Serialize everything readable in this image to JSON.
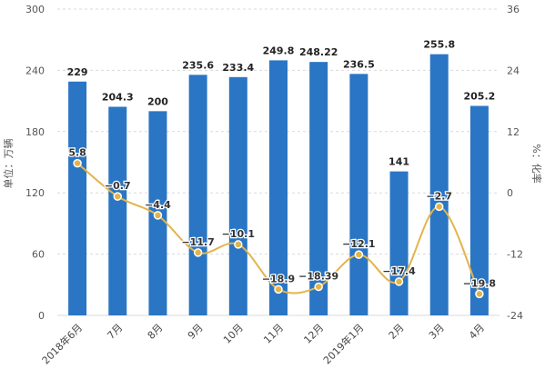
{
  "chart_data": {
    "type": "bar",
    "categories": [
      "2018年6月",
      "7月",
      "8月",
      "9月",
      "10月",
      "11月",
      "12月",
      "2019年1月",
      "2月",
      "3月",
      "4月"
    ],
    "series": [
      {
        "type": "bar",
        "axis": "left",
        "values": [
          229,
          204.3,
          200,
          235.6,
          233.4,
          249.8,
          248.22,
          236.5,
          141,
          255.8,
          205.2
        ],
        "value_labels": [
          "229",
          "204.3",
          "200",
          "235.6",
          "233.4",
          "249.8",
          "248.22",
          "236.5",
          "141",
          "255.8",
          "205.2"
        ]
      },
      {
        "type": "line",
        "axis": "right",
        "values": [
          5.8,
          -0.7,
          -4.4,
          -11.7,
          -10.1,
          -18.9,
          -18.39,
          -12.1,
          -17.4,
          -2.7,
          -19.8
        ],
        "value_labels": [
          "5.8",
          "−0.7",
          "−4.4",
          "−11.7",
          "−10.1",
          "−18.9",
          "−18.39",
          "−12.1",
          "−17.4",
          "−2.7",
          "−19.8"
        ]
      }
    ],
    "ylabel_left": "单位：万辆",
    "ylabel_right": "%：化率",
    "ylim_left": [
      0,
      300
    ],
    "yticks_left": [
      "0",
      "60",
      "120",
      "180",
      "240",
      "300"
    ],
    "ylim_right": [
      -24,
      36
    ],
    "yticks_right": [
      "-24",
      "-12",
      "0",
      "12",
      "24",
      "36"
    ],
    "grid": true,
    "legend": "none",
    "colors": {
      "bar": "#2a76c4",
      "line": "#e3b44b",
      "grid": "#d9d9d9"
    }
  }
}
